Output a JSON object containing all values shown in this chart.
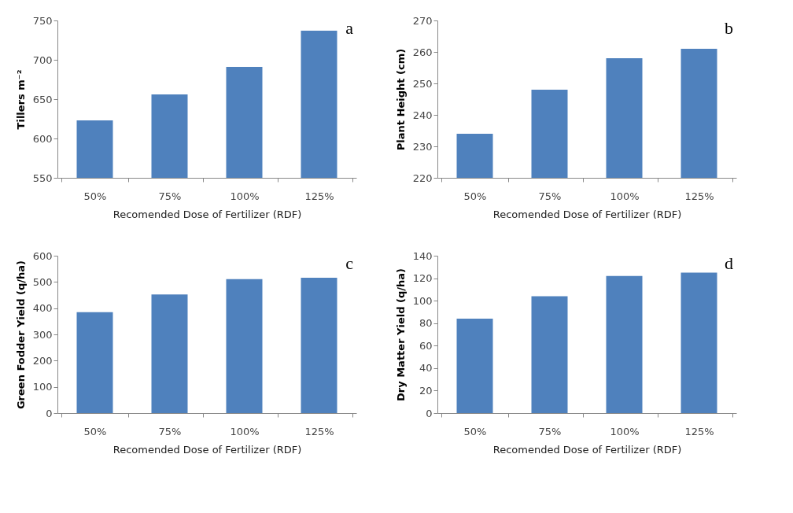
{
  "chart_data": [
    {
      "type": "bar",
      "categories": [
        "50%",
        "75%",
        "100%",
        "125%"
      ],
      "values": [
        623,
        656,
        691,
        737
      ],
      "color": "#4f81bd",
      "xlabel": "Recomended Dose of Fertilizer (RDF)",
      "ylabel": "Tillers m⁻²",
      "ylim": [
        550,
        750
      ],
      "yticks": [
        550,
        600,
        650,
        700,
        750
      ],
      "grid": false,
      "annotations": [
        "a"
      ]
    },
    {
      "type": "bar",
      "categories": [
        "50%",
        "75%",
        "100%",
        "125%"
      ],
      "values": [
        234,
        248,
        258,
        261
      ],
      "color": "#4f81bd",
      "xlabel": "Recomended Dose of Fertilizer (RDF)",
      "ylabel": "Plant Height (cm)",
      "ylim": [
        220,
        270
      ],
      "yticks": [
        220,
        230,
        240,
        250,
        260,
        270
      ],
      "grid": false,
      "annotations": [
        "b"
      ]
    },
    {
      "type": "bar",
      "categories": [
        "50%",
        "75%",
        "100%",
        "125%"
      ],
      "values": [
        385,
        452,
        511,
        516
      ],
      "color": "#4f81bd",
      "xlabel": "Recomended Dose of Fertilizer (RDF)",
      "ylabel": "Green Fodder Yield (q/ha)",
      "ylim": [
        0,
        600
      ],
      "yticks": [
        0,
        100,
        200,
        300,
        400,
        500,
        600
      ],
      "grid": false,
      "annotations": [
        "c"
      ]
    },
    {
      "type": "bar",
      "categories": [
        "50%",
        "75%",
        "100%",
        "125%"
      ],
      "values": [
        84,
        104,
        122,
        125
      ],
      "color": "#4f81bd",
      "xlabel": "Recomended Dose of Fertilizer (RDF)",
      "ylabel": "Dry Matter Yield (q/ha)",
      "ylim": [
        0,
        140
      ],
      "yticks": [
        0,
        20,
        40,
        60,
        80,
        100,
        120,
        140
      ],
      "grid": false,
      "annotations": [
        "d"
      ]
    }
  ]
}
